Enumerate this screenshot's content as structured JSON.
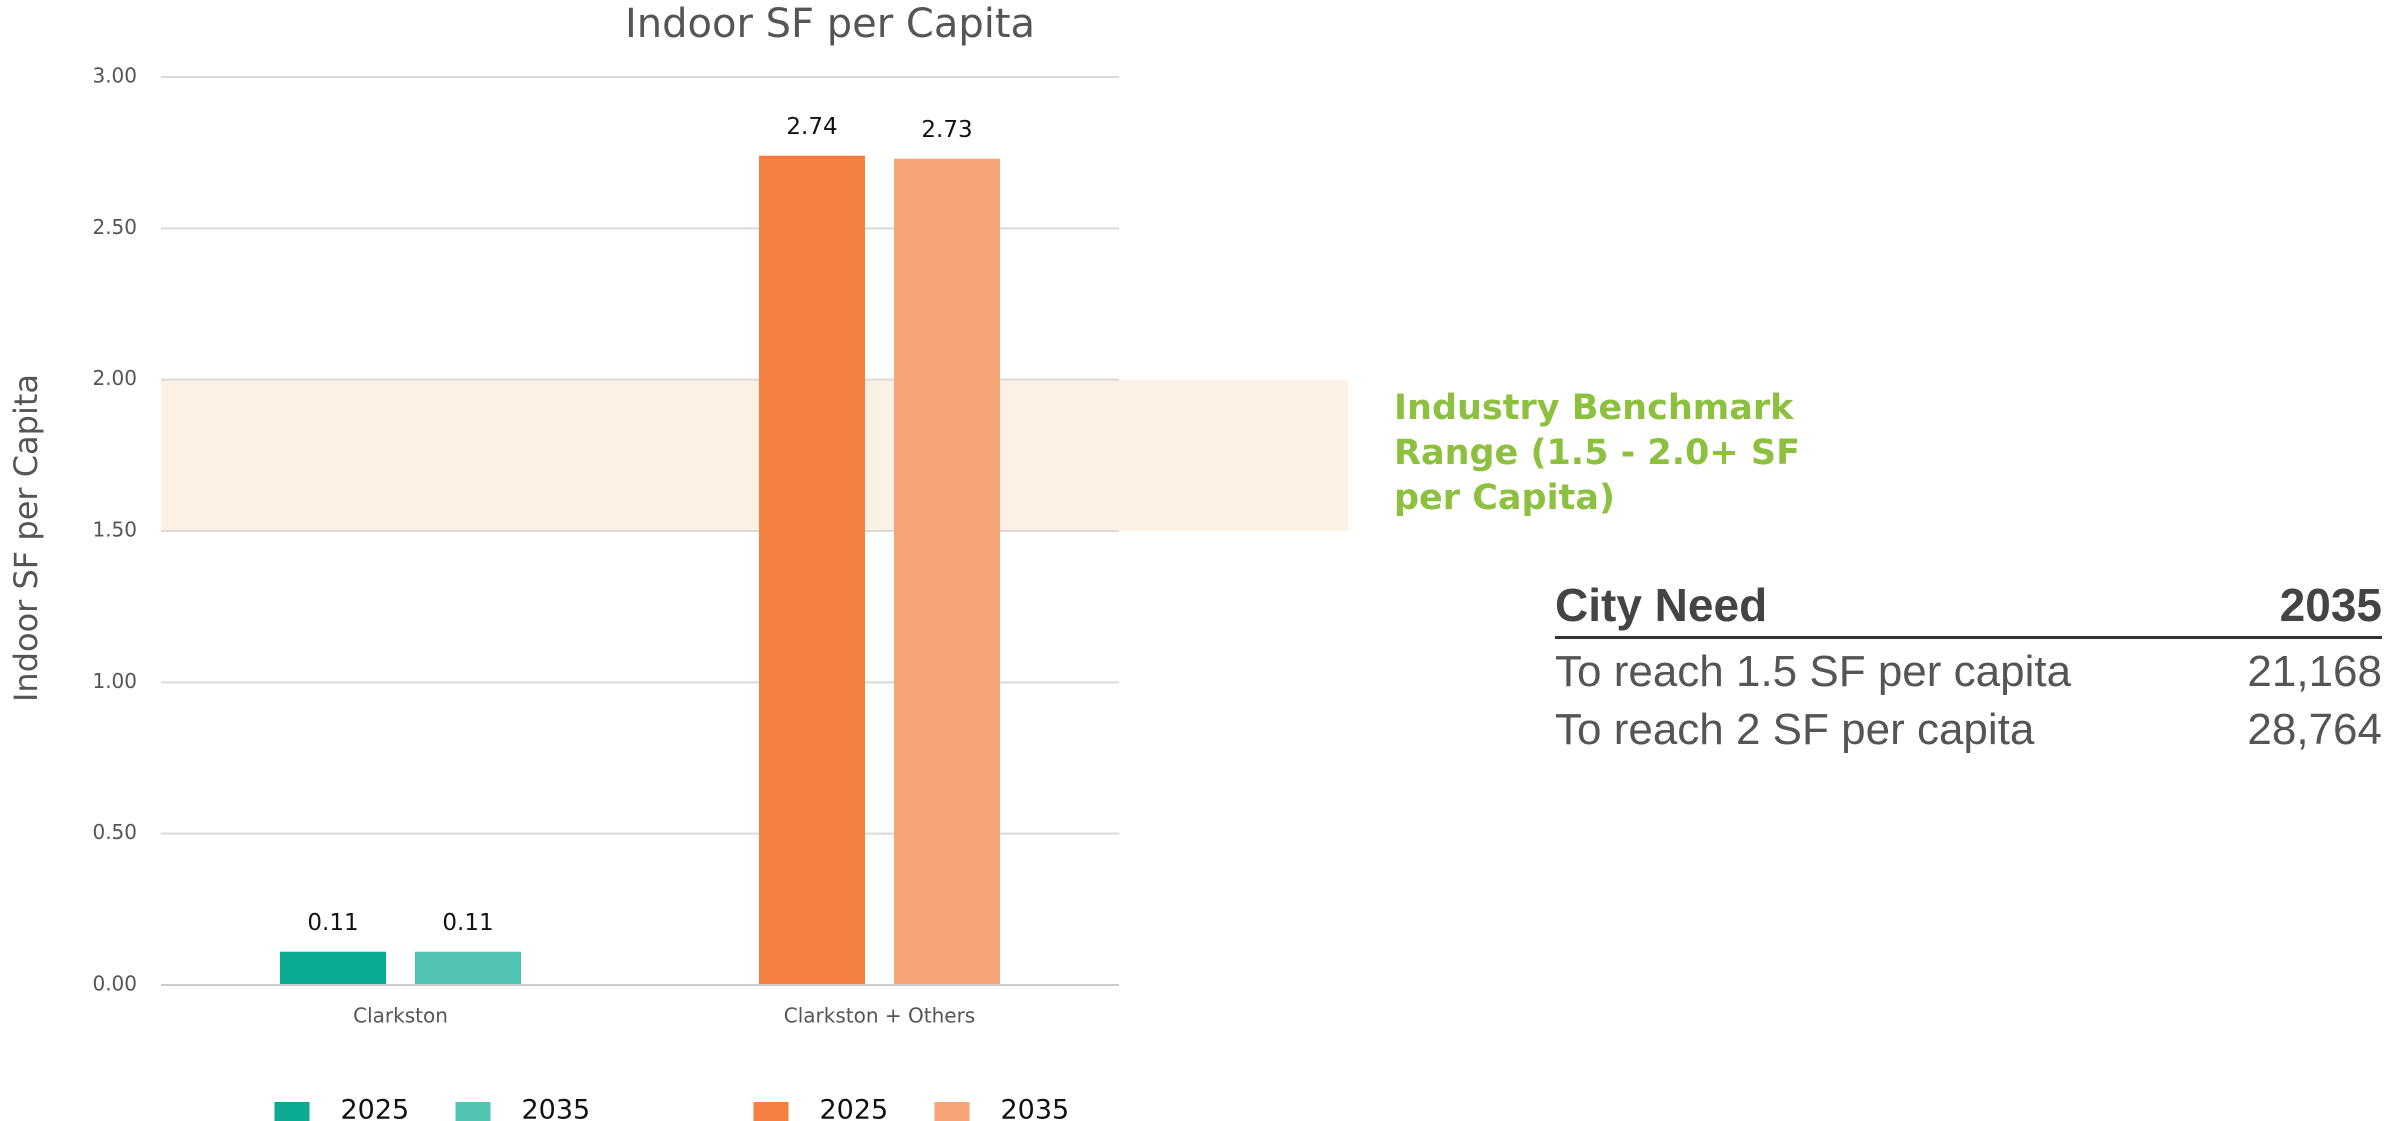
{
  "chart_data": {
    "type": "bar",
    "title": "Indoor SF per Capita",
    "ylabel": "Indoor SF per Capita",
    "categories": [
      "Clarkston",
      "Clarkston + Others"
    ],
    "series": [
      {
        "name": "2025",
        "values": [
          0.11,
          2.74
        ],
        "colors": [
          "#0aab91",
          "#f37f40"
        ]
      },
      {
        "name": "2035",
        "values": [
          0.11,
          2.73
        ],
        "colors": [
          "#50c4b0",
          "#f7a577"
        ]
      }
    ],
    "ylim": [
      0,
      3
    ],
    "yticks": [
      {
        "value": 0,
        "label": "0.00"
      },
      {
        "value": 0.5,
        "label": "0.50"
      },
      {
        "value": 1,
        "label": "1.00"
      },
      {
        "value": 1.5,
        "label": "1.50"
      },
      {
        "value": 2,
        "label": "2.00"
      },
      {
        "value": 2.5,
        "label": "2.50"
      },
      {
        "value": 3,
        "label": "3.00"
      }
    ],
    "grid": true,
    "benchmark": {
      "range": [
        1.5,
        2.0
      ],
      "color": "#fdf1e6",
      "label": "Industry Benchmark Range (1.5 - 2.0+ SF per Capita)"
    }
  },
  "table": {
    "header": [
      "City Need",
      "2035"
    ],
    "rows": [
      [
        "To reach 1.5 SF per capita",
        "21,168"
      ],
      [
        "To reach 2 SF per capita",
        "28,764"
      ]
    ]
  }
}
